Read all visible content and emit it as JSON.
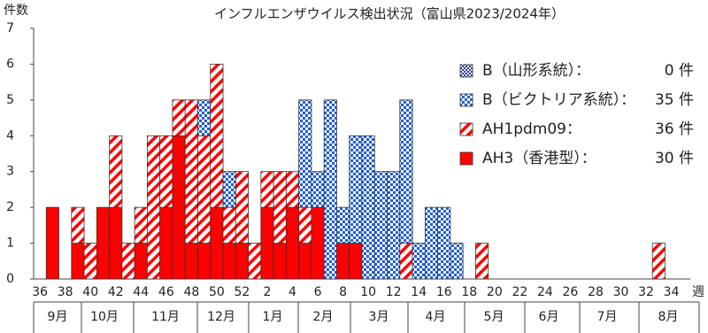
{
  "chart_data": {
    "type": "stacked-bar",
    "title": "インフルエンザウイルス検出状況（富山県2023/2024年）",
    "y_label": "件数",
    "x_label": "週",
    "categories": [
      "36",
      null,
      "38",
      null,
      "40",
      null,
      "42",
      null,
      "44",
      null,
      "46",
      null,
      "48",
      null,
      "50",
      null,
      "52",
      null,
      "2",
      null,
      "4",
      null,
      "6",
      null,
      "8",
      null,
      "10",
      null,
      "12",
      null,
      "14",
      null,
      "16",
      null,
      "18",
      null,
      "20",
      null,
      "22",
      null,
      "24",
      null,
      "26",
      null,
      "28",
      null,
      "30",
      null,
      "32",
      null,
      "34",
      null
    ],
    "months": [
      "9月",
      "10月",
      "11月",
      "12月",
      "1月",
      "2月",
      "3月",
      "4月",
      "5月",
      "6月",
      "7月",
      "8月"
    ],
    "ylim": [
      0,
      7
    ],
    "yticks": [
      0,
      1,
      2,
      3,
      4,
      5,
      6,
      7
    ],
    "series": [
      {
        "name": "AH3（香港型）：",
        "color": "#ff0000",
        "pattern": "solid",
        "count": {
          "value": 30,
          "label": "30 件"
        },
        "values": [
          0,
          2,
          0,
          1,
          0,
          2,
          2,
          0,
          1,
          0,
          2,
          4,
          1,
          1,
          2,
          1,
          1,
          0,
          2,
          1,
          2,
          1,
          2,
          0,
          1,
          1,
          0,
          0,
          0,
          0,
          0,
          0,
          0,
          0,
          0,
          0,
          0,
          0,
          0,
          0,
          0,
          0,
          0,
          0,
          0,
          0,
          0,
          0,
          0,
          0,
          0,
          0
        ]
      },
      {
        "name": "AH1pdm09：",
        "color": "#ff0000",
        "pattern": "hatch",
        "count": {
          "value": 36,
          "label": "36 件"
        },
        "values": [
          0,
          0,
          0,
          1,
          1,
          0,
          2,
          1,
          1,
          4,
          2,
          1,
          4,
          3,
          4,
          1,
          2,
          1,
          1,
          2,
          1,
          1,
          0,
          0,
          0,
          0,
          0,
          0,
          0,
          1,
          0,
          0,
          0,
          0,
          0,
          1,
          0,
          0,
          0,
          0,
          0,
          0,
          0,
          0,
          0,
          0,
          0,
          0,
          0,
          1,
          0,
          0
        ]
      },
      {
        "name": "B（ビクトリア系統）：",
        "color": "#1f5fd6",
        "pattern": "check",
        "count": {
          "value": 35,
          "label": "35 件"
        },
        "values": [
          0,
          0,
          0,
          0,
          0,
          0,
          0,
          0,
          0,
          0,
          0,
          0,
          0,
          1,
          0,
          1,
          0,
          0,
          0,
          0,
          0,
          3,
          1,
          5,
          1,
          3,
          4,
          3,
          3,
          4,
          1,
          2,
          2,
          1,
          0,
          0,
          0,
          0,
          0,
          0,
          0,
          0,
          0,
          0,
          0,
          0,
          0,
          0,
          0,
          0,
          0,
          0
        ]
      },
      {
        "name": "B（山形系統）：",
        "color": "#1f3fa0",
        "pattern": "fine",
        "count": {
          "value": 0,
          "label": "0 件"
        },
        "values": [
          0,
          0,
          0,
          0,
          0,
          0,
          0,
          0,
          0,
          0,
          0,
          0,
          0,
          0,
          0,
          0,
          0,
          0,
          0,
          0,
          0,
          0,
          0,
          0,
          0,
          0,
          0,
          0,
          0,
          0,
          0,
          0,
          0,
          0,
          0,
          0,
          0,
          0,
          0,
          0,
          0,
          0,
          0,
          0,
          0,
          0,
          0,
          0,
          0,
          0,
          0,
          0
        ]
      }
    ]
  }
}
